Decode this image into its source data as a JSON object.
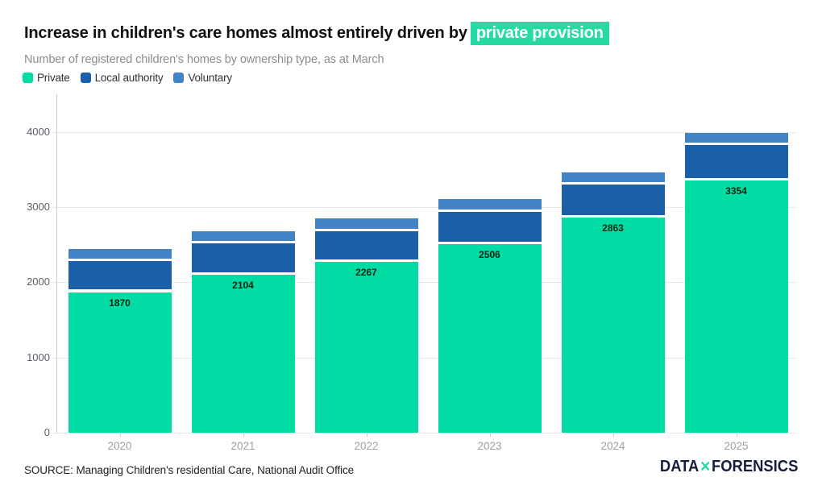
{
  "header": {
    "title_plain": "Increase in children's care homes almost entirely driven by",
    "title_highlight": "private provision",
    "highlight_color": "#25dba3",
    "subtitle": "Number of registered children's homes by ownership type, as at March"
  },
  "chart_data": {
    "type": "bar",
    "stacked": true,
    "categories": [
      "2020",
      "2021",
      "2022",
      "2023",
      "2024",
      "2025"
    ],
    "series": [
      {
        "name": "Private",
        "color": "#00dca4",
        "values": [
          1870,
          2104,
          2267,
          2506,
          2863,
          3354
        ],
        "show_labels": true
      },
      {
        "name": "Local authority",
        "color": "#1b5fa8",
        "values": [
          410,
          410,
          415,
          430,
          435,
          470
        ],
        "show_labels": false
      },
      {
        "name": "Voluntary",
        "color": "#4183c4",
        "values": [
          160,
          170,
          165,
          170,
          165,
          165
        ],
        "show_labels": false
      }
    ],
    "data_labels_shown": [
      1870,
      2104,
      2267,
      2506,
      2863,
      3354
    ],
    "yticks": [
      0,
      1000,
      2000,
      3000,
      4000
    ],
    "ylim": [
      0,
      4500
    ],
    "grid": "horizontal",
    "legend_position": "top-left",
    "title": "Increase in children's care homes almost entirely driven by private provision",
    "subtitle": "Number of registered children's homes by ownership type, as at March",
    "xlabel": "",
    "ylabel": ""
  },
  "footer": {
    "source": "SOURCE: Managing Children's residential Care, National Audit Office",
    "logo_part1": "DATA",
    "logo_x": "✕",
    "logo_part2": "FORENSICS",
    "logo_navy": "#161e3f",
    "logo_green": "#25dba3"
  }
}
